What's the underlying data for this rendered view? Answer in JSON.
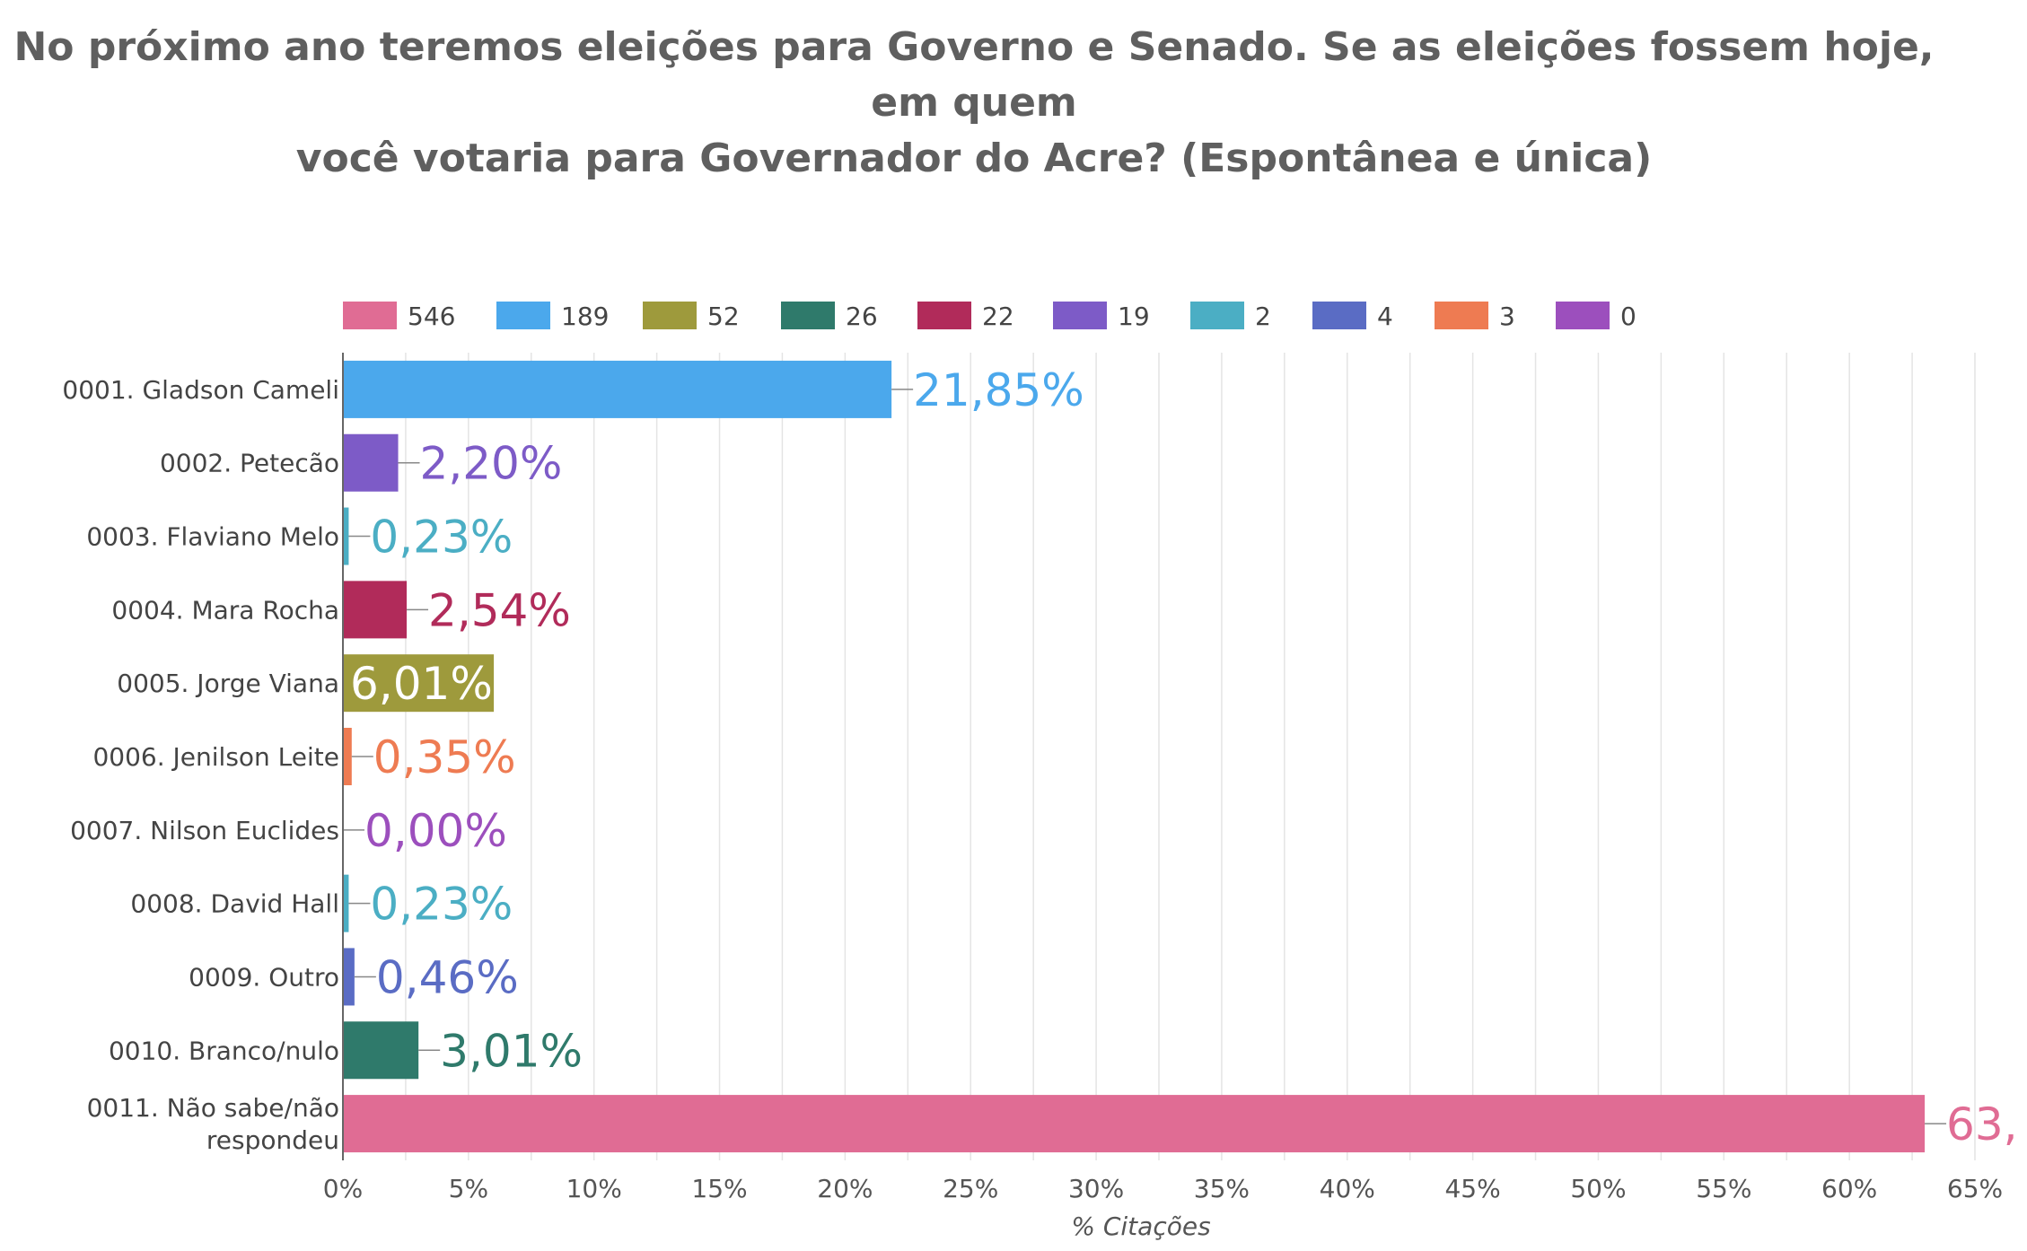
{
  "chart_data": {
    "type": "bar",
    "orientation": "horizontal",
    "title_lines": [
      "No próximo ano teremos eleições para Governo e Senado. Se as eleições fossem hoje, em quem",
      "você votaria para Governador do Acre? (Espontânea e única)"
    ],
    "xlabel": "% Citações",
    "xlim": [
      0,
      65
    ],
    "xticks": [
      "0%",
      "5%",
      "10%",
      "15%",
      "20%",
      "25%",
      "30%",
      "35%",
      "40%",
      "45%",
      "50%",
      "55%",
      "60%",
      "65%"
    ],
    "grid": true,
    "legend_position": "top",
    "legend": [
      {
        "label": "546",
        "color": "#e06c94"
      },
      {
        "label": "189",
        "color": "#4ba8ec"
      },
      {
        "label": "52",
        "color": "#9e9a3c"
      },
      {
        "label": "26",
        "color": "#2f7a6b"
      },
      {
        "label": "22",
        "color": "#b12b5a"
      },
      {
        "label": "19",
        "color": "#7d5bc7"
      },
      {
        "label": "2",
        "color": "#4baec4"
      },
      {
        "label": "4",
        "color": "#5a6cc4"
      },
      {
        "label": "3",
        "color": "#ee7b52"
      },
      {
        "label": "0",
        "color": "#9c4fbd"
      }
    ],
    "categories": [
      [
        "0001. Gladson Cameli"
      ],
      [
        "0002. Petecão"
      ],
      [
        "0003. Flaviano Melo"
      ],
      [
        "0004. Mara Rocha"
      ],
      [
        "0005. Jorge Viana"
      ],
      [
        "0006. Jenilson Leite"
      ],
      [
        "0007. Nilson Euclides"
      ],
      [
        "0008. David Hall"
      ],
      [
        "0009. Outro"
      ],
      [
        "0010. Branco/nulo"
      ],
      [
        "0011. Não sabe/não",
        "respondeu"
      ]
    ],
    "values": [
      21.85,
      2.2,
      0.23,
      2.54,
      6.01,
      0.35,
      0.0,
      0.23,
      0.46,
      3.01,
      63.0
    ],
    "value_labels": [
      "21,85%",
      "2,20%",
      "0,23%",
      "2,54%",
      "6,01%",
      "0,35%",
      "0,00%",
      "0,23%",
      "0,46%",
      "3,01%",
      "63,"
    ],
    "colors": [
      "#4ba8ec",
      "#7d5bc7",
      "#4baec4",
      "#b12b5a",
      "#9e9a3c",
      "#ee7b52",
      "#9c4fbd",
      "#4baec4",
      "#5a6cc4",
      "#2f7a6b",
      "#e06c94"
    ],
    "label_inside": [
      false,
      false,
      false,
      false,
      true,
      false,
      false,
      false,
      false,
      false,
      false
    ]
  }
}
